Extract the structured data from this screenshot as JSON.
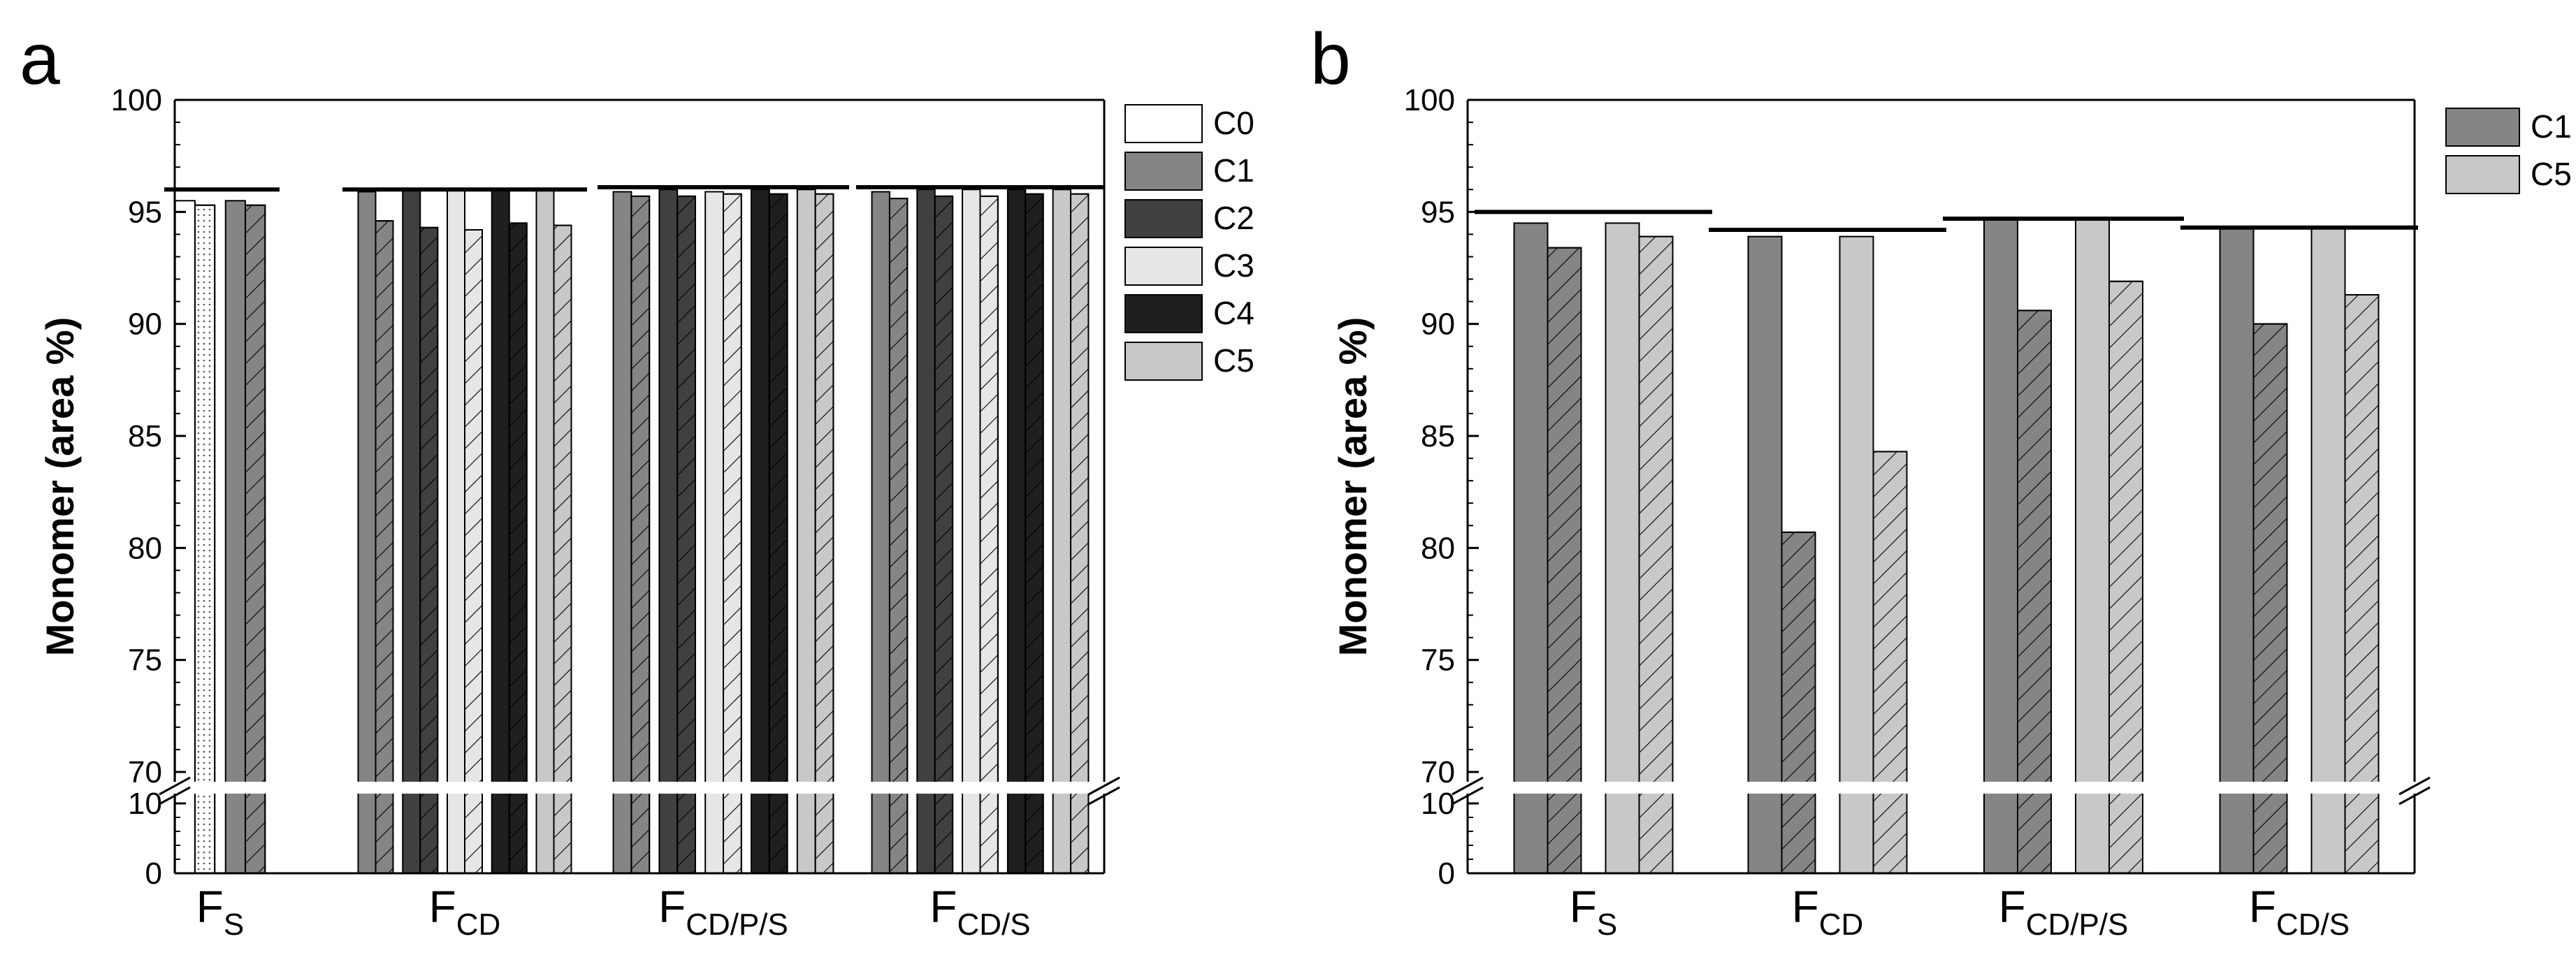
{
  "figure": {
    "panel_labels": [
      "a",
      "b"
    ]
  },
  "colors": {
    "C0": "#ffffff",
    "C1": "#858585",
    "C2": "#404040",
    "C3": "#e6e6e6",
    "C4": "#1f1f1f",
    "C5": "#c8c8c8"
  },
  "chart_data": [
    {
      "panel": "a",
      "type": "bar",
      "ylabel": "Monomer (area %)",
      "ylim": [
        0,
        100
      ],
      "axis_break": [
        10,
        69
      ],
      "ticks": [
        "0",
        "10",
        "70",
        "75",
        "80",
        "85",
        "90",
        "95",
        "100"
      ],
      "groups": [
        {
          "base": "F",
          "sub": "S"
        },
        {
          "base": "F",
          "sub": "CD"
        },
        {
          "base": "F",
          "sub": "CD/P/S"
        },
        {
          "base": "F",
          "sub": "CD/S"
        }
      ],
      "legend": [
        "C0",
        "C1",
        "C2",
        "C3",
        "C4",
        "C5"
      ],
      "legend_position": "top-right",
      "series": [
        {
          "name": "C0",
          "values": [
            [
              95.5,
              95.3
            ],
            null,
            null,
            null
          ]
        },
        {
          "name": "C1",
          "values": [
            [
              95.5,
              95.3
            ],
            [
              95.9,
              94.6
            ],
            [
              95.9,
              95.7
            ],
            [
              95.9,
              95.6
            ]
          ]
        },
        {
          "name": "C2",
          "values": [
            null,
            [
              96.0,
              94.3
            ],
            [
              96.0,
              95.7
            ],
            [
              96.0,
              95.7
            ]
          ]
        },
        {
          "name": "C3",
          "values": [
            null,
            [
              96.0,
              94.2
            ],
            [
              95.9,
              95.8
            ],
            [
              96.0,
              95.7
            ]
          ]
        },
        {
          "name": "C4",
          "values": [
            null,
            [
              96.0,
              94.5
            ],
            [
              96.0,
              95.8
            ],
            [
              96.0,
              95.8
            ]
          ]
        },
        {
          "name": "C5",
          "values": [
            null,
            [
              96.0,
              94.4
            ],
            [
              96.0,
              95.8
            ],
            [
              96.0,
              95.8
            ]
          ]
        }
      ],
      "reference_lines": [
        96.0,
        96.0,
        96.1,
        96.1
      ],
      "note": "each pair: solid bar = first value, hatched bar = second value"
    },
    {
      "panel": "b",
      "type": "bar",
      "ylabel": "Monomer (area %)",
      "ylim": [
        0,
        100
      ],
      "axis_break": [
        10,
        69
      ],
      "ticks": [
        "0",
        "10",
        "70",
        "75",
        "80",
        "85",
        "90",
        "95",
        "100"
      ],
      "groups": [
        {
          "base": "F",
          "sub": "S"
        },
        {
          "base": "F",
          "sub": "CD"
        },
        {
          "base": "F",
          "sub": "CD/P/S"
        },
        {
          "base": "F",
          "sub": "CD/S"
        }
      ],
      "legend": [
        "C1",
        "C5"
      ],
      "legend_position": "top-right",
      "series": [
        {
          "name": "C1",
          "values": [
            [
              94.5,
              93.4
            ],
            [
              93.9,
              80.7
            ],
            [
              94.7,
              90.6
            ],
            [
              94.3,
              90.0
            ]
          ]
        },
        {
          "name": "C5",
          "values": [
            [
              94.5,
              93.9
            ],
            [
              93.9,
              84.3
            ],
            [
              94.7,
              91.9
            ],
            [
              94.3,
              91.3
            ]
          ]
        }
      ],
      "reference_lines": [
        95.0,
        94.2,
        94.7,
        94.3
      ],
      "note": "each pair: solid bar = first value, hatched bar = second value"
    }
  ]
}
